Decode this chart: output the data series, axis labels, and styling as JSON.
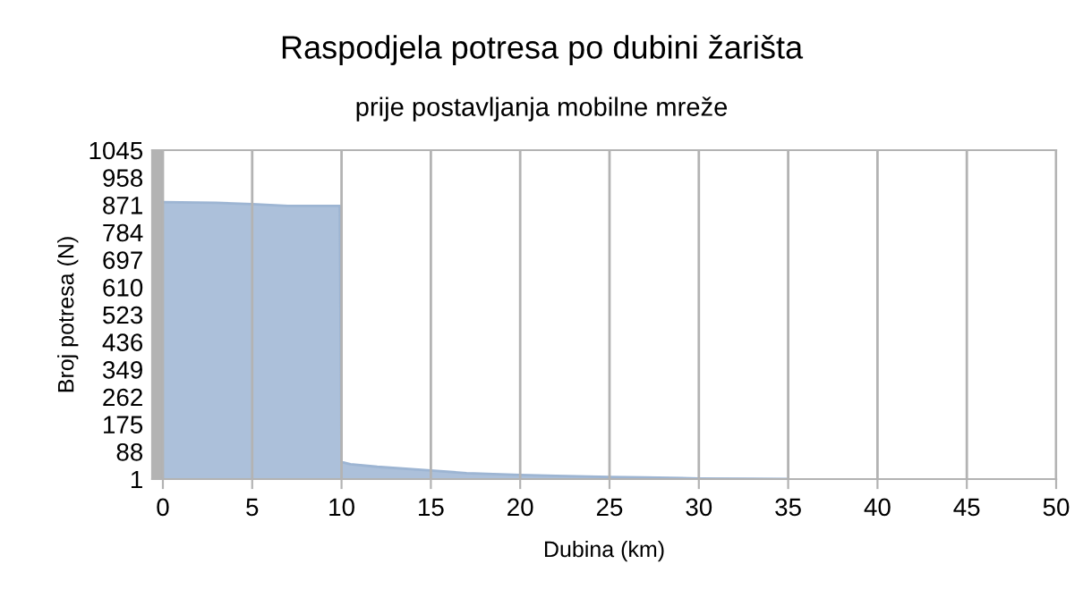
{
  "chart_data": {
    "type": "area",
    "title": "Raspodjela potresa po dubini žarišta",
    "subtitle": "prije postavljanja mobilne mreže",
    "xlabel": "Dubina (km)",
    "ylabel": "Broj potresa (N)",
    "x": [
      0,
      3,
      5,
      7,
      9.9,
      10,
      10.5,
      12,
      15,
      17,
      20,
      22,
      25,
      27,
      30,
      33,
      35
    ],
    "series": [
      {
        "color": "#9db5d3",
        "values": [
          880,
          878,
          874,
          868,
          868,
          55,
          48,
          40,
          28,
          20,
          14,
          11,
          8,
          6,
          3,
          2,
          1
        ]
      }
    ],
    "xlim": [
      -0.6,
      50
    ],
    "xticks": [
      0,
      5,
      10,
      15,
      20,
      25,
      30,
      35,
      40,
      45,
      50
    ],
    "ylim": [
      1,
      1045
    ],
    "yticks": [
      1,
      88,
      175,
      262,
      349,
      436,
      523,
      610,
      697,
      784,
      871,
      958,
      1045
    ],
    "bands": [
      {
        "axis": "x",
        "from": -0.6,
        "to": 0,
        "color": "#b3b3b3"
      }
    ],
    "grid": "x",
    "legend": false
  }
}
